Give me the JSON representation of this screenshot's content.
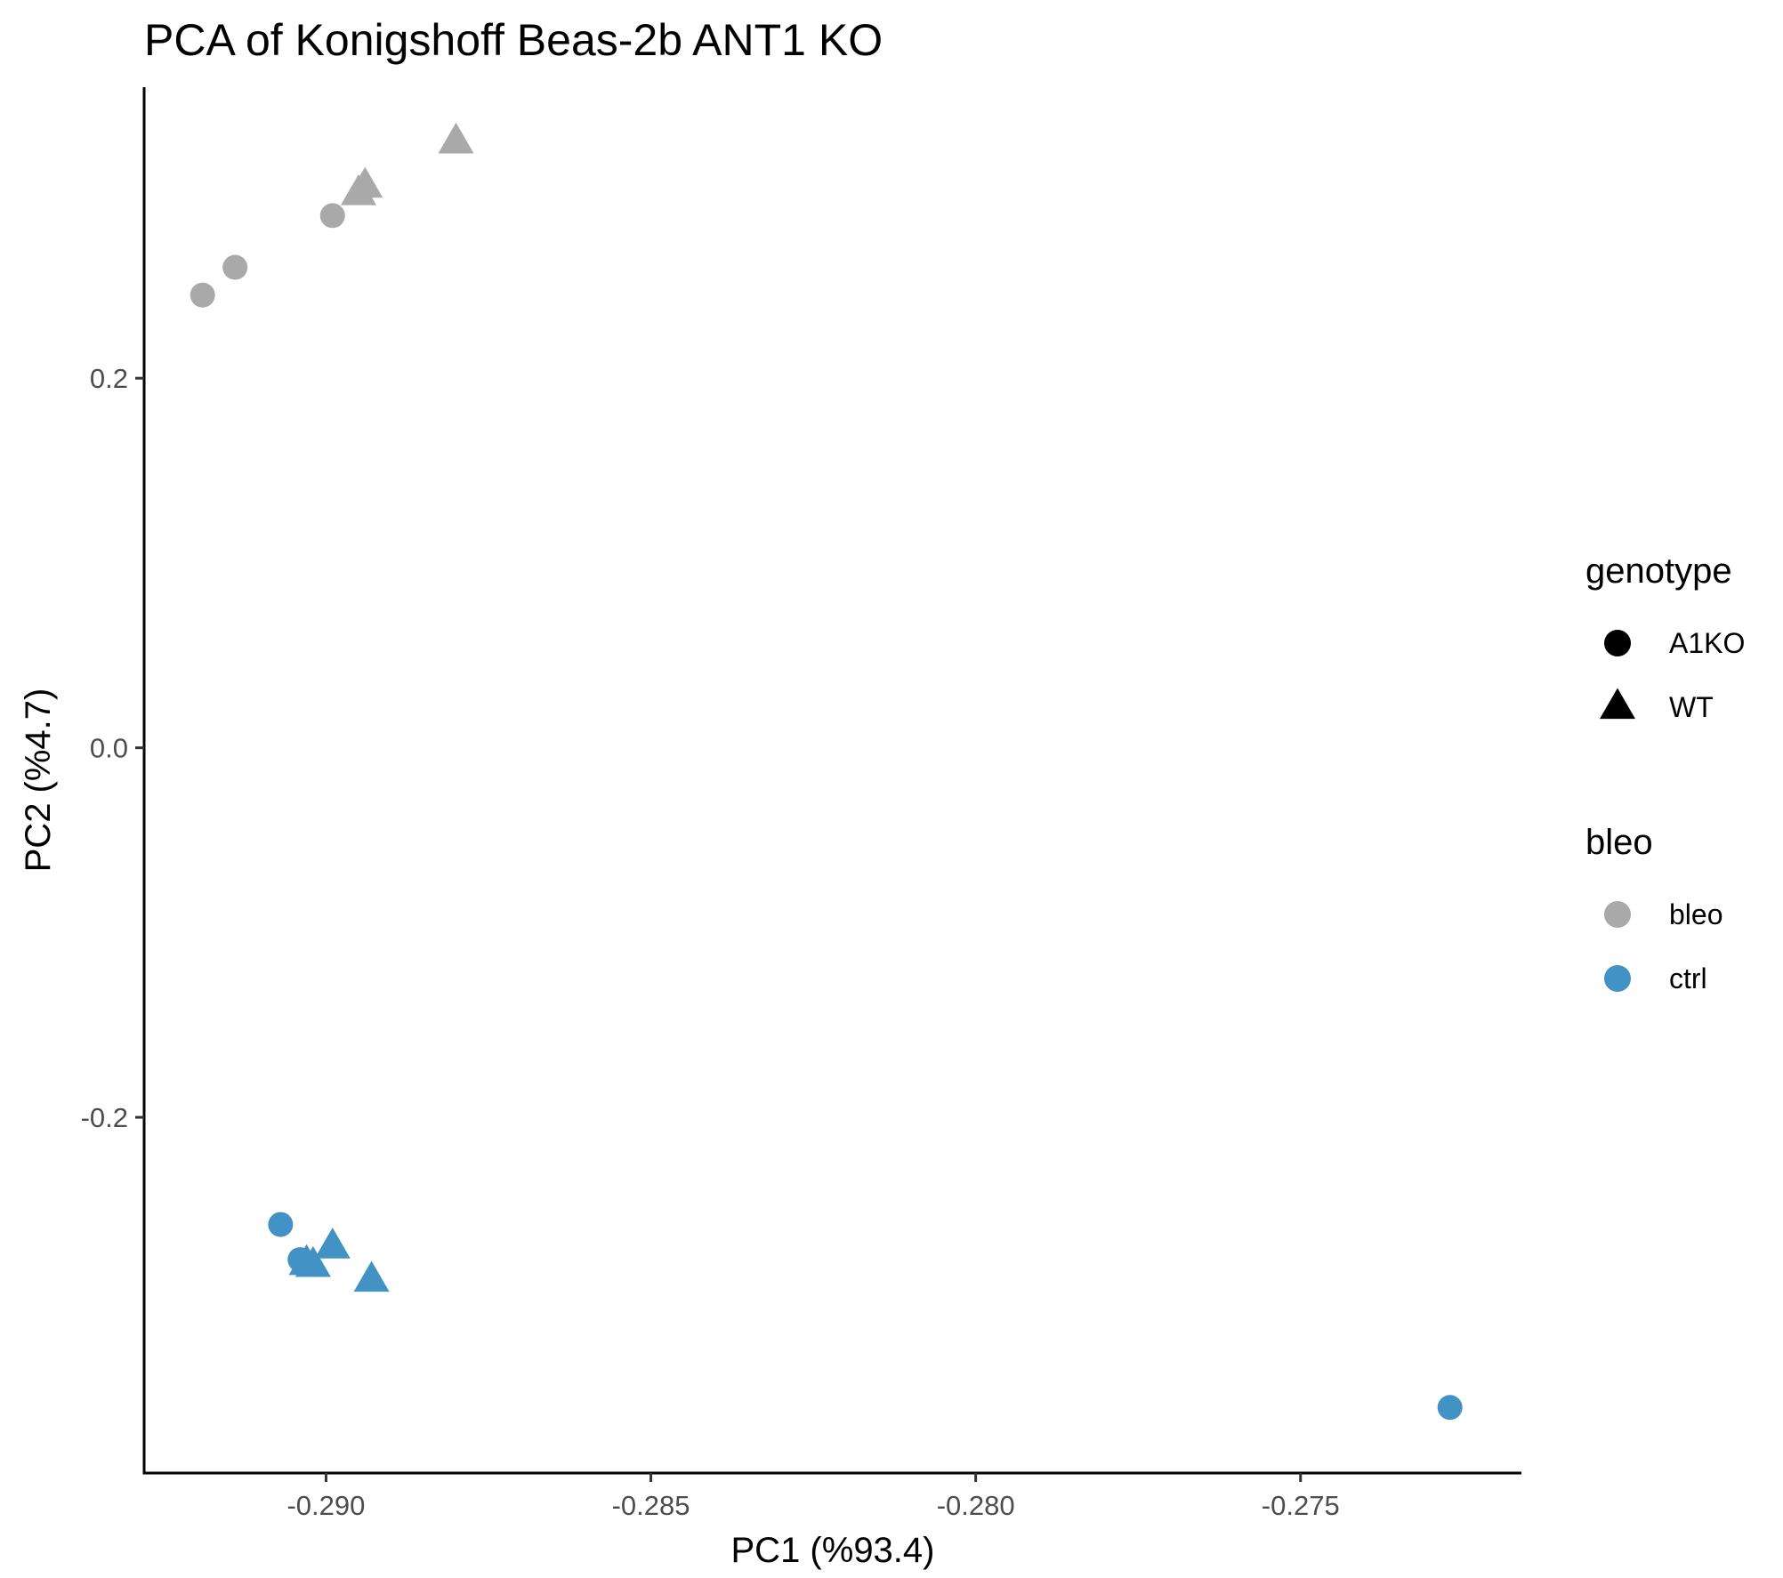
{
  "chart_data": {
    "type": "scatter",
    "title": "PCA of Konigshoff Beas-2b ANT1 KO",
    "xlabel": "PC1 (%93.4)",
    "ylabel": "PC2 (%4.7)",
    "xlim": [
      -0.2928,
      -0.2716
    ],
    "ylim": [
      -0.3925,
      0.3575
    ],
    "x_ticks": [
      -0.29,
      -0.285,
      -0.28,
      -0.275
    ],
    "x_tick_labels": [
      "-0.290",
      "-0.285",
      "-0.280",
      "-0.275"
    ],
    "y_ticks": [
      -0.2,
      0.0,
      0.2
    ],
    "y_tick_labels": [
      "-0.2",
      "0.0",
      "0.2"
    ],
    "grid": false,
    "legends": [
      {
        "title": "genotype",
        "items": [
          {
            "label": "A1KO",
            "shape": "circle",
            "color": "#000000"
          },
          {
            "label": "WT",
            "shape": "triangle",
            "color": "#000000"
          }
        ]
      },
      {
        "title": "bleo",
        "items": [
          {
            "label": "bleo",
            "shape": "circle",
            "color": "#A9A9A9"
          },
          {
            "label": "ctrl",
            "shape": "circle",
            "color": "#4292C6"
          }
        ]
      }
    ],
    "legend_placement": "right",
    "colors": {
      "bleo": "#A9A9A9",
      "ctrl": "#4292C6"
    },
    "points": [
      {
        "x": -0.2919,
        "y": 0.245,
        "genotype": "A1KO",
        "bleo": "bleo"
      },
      {
        "x": -0.2914,
        "y": 0.26,
        "genotype": "A1KO",
        "bleo": "bleo"
      },
      {
        "x": -0.2899,
        "y": 0.288,
        "genotype": "A1KO",
        "bleo": "bleo"
      },
      {
        "x": -0.2895,
        "y": 0.3,
        "genotype": "WT",
        "bleo": "bleo"
      },
      {
        "x": -0.2894,
        "y": 0.304,
        "genotype": "WT",
        "bleo": "bleo"
      },
      {
        "x": -0.288,
        "y": 0.328,
        "genotype": "WT",
        "bleo": "bleo"
      },
      {
        "x": -0.2907,
        "y": -0.258,
        "genotype": "A1KO",
        "bleo": "ctrl"
      },
      {
        "x": -0.2904,
        "y": -0.277,
        "genotype": "A1KO",
        "bleo": "ctrl"
      },
      {
        "x": -0.2903,
        "y": -0.279,
        "genotype": "WT",
        "bleo": "ctrl"
      },
      {
        "x": -0.2902,
        "y": -0.28,
        "genotype": "WT",
        "bleo": "ctrl"
      },
      {
        "x": -0.2899,
        "y": -0.27,
        "genotype": "WT",
        "bleo": "ctrl"
      },
      {
        "x": -0.2893,
        "y": -0.288,
        "genotype": "WT",
        "bleo": "ctrl"
      },
      {
        "x": -0.2727,
        "y": -0.357,
        "genotype": "A1KO",
        "bleo": "ctrl"
      }
    ]
  }
}
